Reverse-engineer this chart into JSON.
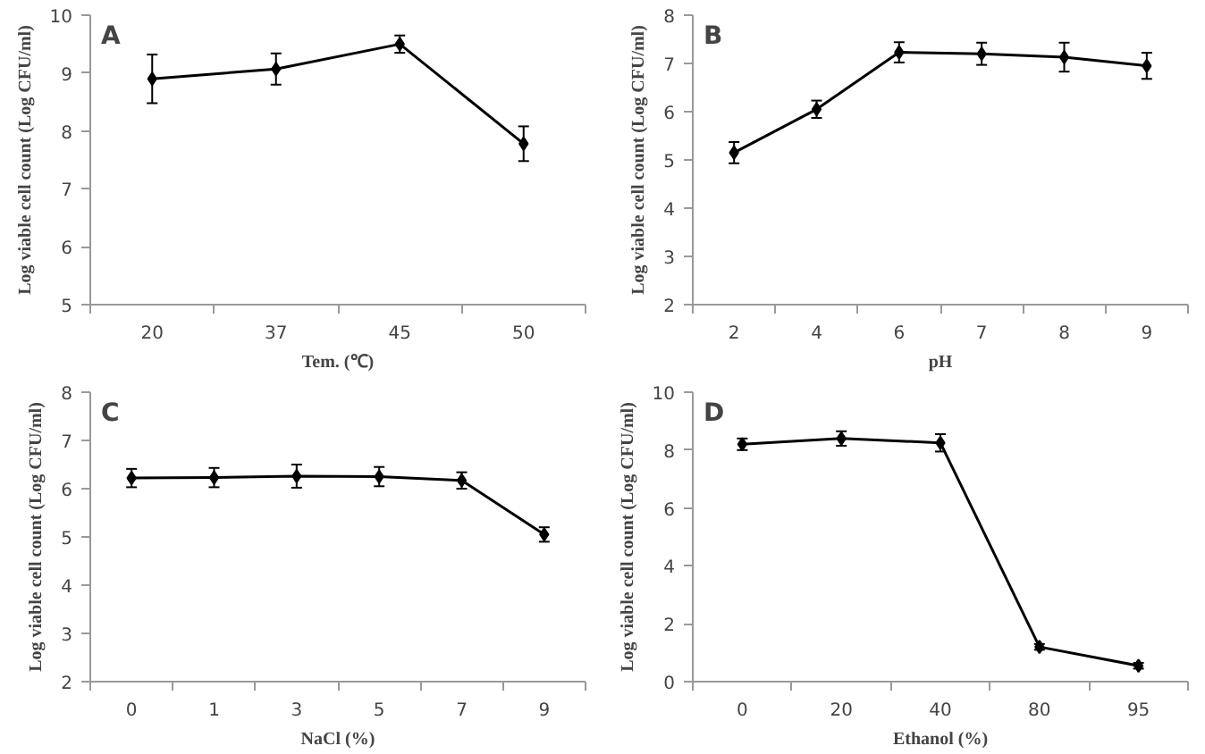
{
  "chart_data": [
    {
      "type": "line",
      "title": "A",
      "xlabel": "Tem. (℃)",
      "ylabel": "Log viable cell count (Log CFU/ml)",
      "categories": [
        "20",
        "37",
        "45",
        "50"
      ],
      "values": [
        8.9,
        9.07,
        9.5,
        7.78
      ],
      "errors": [
        0.42,
        0.27,
        0.15,
        0.3
      ],
      "color": "#000000",
      "ylim": [
        5,
        10
      ],
      "yticks": [
        5,
        6,
        7,
        8,
        9,
        10
      ],
      "grid": false,
      "marker": "diamond",
      "line_style": "solid"
    },
    {
      "type": "line",
      "title": "B",
      "xlabel": "pH",
      "ylabel": "Log viable cell count (Log CFU/ml)",
      "categories": [
        "2",
        "4",
        "6",
        "7",
        "8",
        "9"
      ],
      "values": [
        5.15,
        6.05,
        7.23,
        7.2,
        7.13,
        6.95
      ],
      "errors": [
        0.22,
        0.18,
        0.21,
        0.23,
        0.3,
        0.27
      ],
      "color": "#000000",
      "ylim": [
        2,
        8
      ],
      "yticks": [
        2,
        3,
        4,
        5,
        6,
        7,
        8
      ],
      "grid": false,
      "marker": "diamond",
      "line_style": "solid"
    },
    {
      "type": "line",
      "title": "C",
      "xlabel": "NaCl (%)",
      "ylabel": "Log viable cell count (Log CFU/ml)",
      "categories": [
        "0",
        "1",
        "3",
        "5",
        "7",
        "9"
      ],
      "values": [
        6.22,
        6.23,
        6.26,
        6.25,
        6.17,
        5.05
      ],
      "errors": [
        0.19,
        0.2,
        0.24,
        0.2,
        0.17,
        0.15
      ],
      "color": "#000000",
      "ylim": [
        2,
        8
      ],
      "yticks": [
        2,
        3,
        4,
        5,
        6,
        7,
        8
      ],
      "grid": false,
      "marker": "diamond",
      "line_style": "solid"
    },
    {
      "type": "line",
      "title": "D",
      "xlabel": "Ethanol (%)",
      "ylabel": "Log viable cell count (Log CFU/ml)",
      "categories": [
        "0",
        "20",
        "40",
        "80",
        "95"
      ],
      "values": [
        8.2,
        8.4,
        8.25,
        1.2,
        0.55
      ],
      "errors": [
        0.2,
        0.25,
        0.3,
        0.1,
        0.1
      ],
      "color": "#000000",
      "ylim": [
        0,
        10
      ],
      "yticks": [
        0,
        2,
        4,
        6,
        8,
        10
      ],
      "grid": false,
      "marker": "diamond",
      "line_style": "solid"
    }
  ]
}
